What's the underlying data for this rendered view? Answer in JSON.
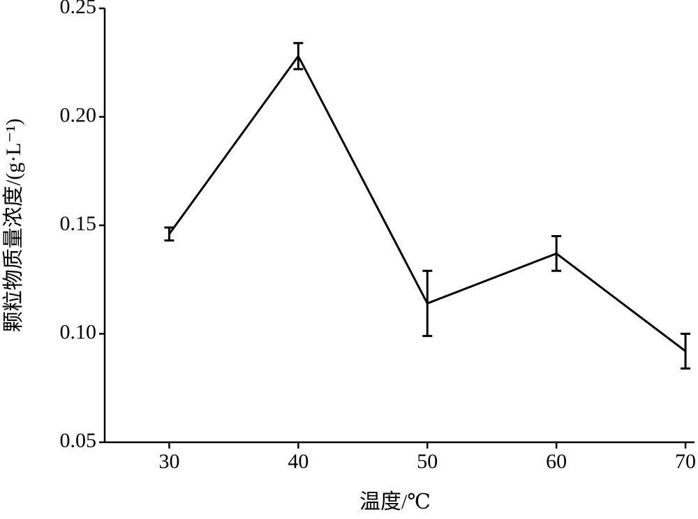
{
  "chart_data": {
    "type": "line",
    "x": [
      30,
      40,
      50,
      60,
      70
    ],
    "series": [
      {
        "color": "#000000",
        "values": [
          0.146,
          0.228,
          0.114,
          0.137,
          0.092
        ],
        "errors": [
          0.003,
          0.006,
          0.015,
          0.008,
          0.008
        ]
      }
    ],
    "xlabel": "温度/℃",
    "ylabel": "颗粒物质量浓度/(g·L⁻¹)",
    "xlim": [
      25,
      70.7
    ],
    "xticks": [
      30,
      40,
      50,
      60,
      70
    ],
    "ylim": [
      0.05,
      0.25
    ],
    "yticks": [
      {
        "value": 0.05,
        "label": "0.05"
      },
      {
        "value": 0.1,
        "label": "0.10"
      },
      {
        "value": 0.15,
        "label": "0.15"
      },
      {
        "value": 0.2,
        "label": "0.20"
      },
      {
        "value": 0.25,
        "label": "0.25"
      }
    ]
  }
}
